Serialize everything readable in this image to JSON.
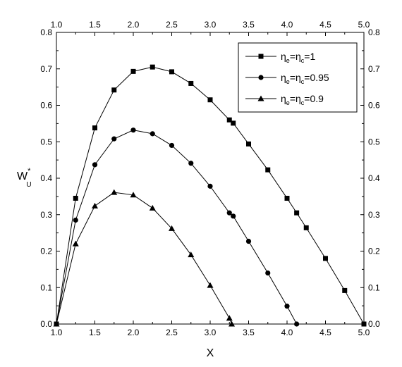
{
  "chart_data": {
    "type": "line",
    "xlabel": "X",
    "ylabel": {
      "main": "W",
      "sup": "*",
      "sub": "U"
    },
    "xlim": [
      1.0,
      5.0
    ],
    "ylim": [
      0.0,
      0.8
    ],
    "x_ticks": [
      "1.0",
      "1.5",
      "2.0",
      "2.5",
      "3.0",
      "3.5",
      "4.0",
      "4.5",
      "5.0"
    ],
    "y_ticks": [
      "0.0",
      "0.1",
      "0.2",
      "0.3",
      "0.4",
      "0.5",
      "0.6",
      "0.7",
      "0.8"
    ],
    "legend_position": "top-right",
    "grid": false,
    "series": [
      {
        "name": {
          "a": "η",
          "a_sub": "e",
          "b": "=η",
          "b_sub": "c",
          "c": "=1"
        },
        "marker": "square",
        "points": [
          [
            1.0,
            0.0
          ],
          [
            1.25,
            0.345
          ],
          [
            1.5,
            0.538
          ],
          [
            1.75,
            0.642
          ],
          [
            2.0,
            0.693
          ],
          [
            2.25,
            0.705
          ],
          [
            2.5,
            0.692
          ],
          [
            2.75,
            0.66
          ],
          [
            3.0,
            0.615
          ],
          [
            3.25,
            0.56
          ],
          [
            3.3,
            0.551
          ],
          [
            3.5,
            0.494
          ],
          [
            3.75,
            0.423
          ],
          [
            4.0,
            0.345
          ],
          [
            4.125,
            0.305
          ],
          [
            4.25,
            0.264
          ],
          [
            4.5,
            0.18
          ],
          [
            4.75,
            0.092
          ],
          [
            5.0,
            0.0
          ]
        ]
      },
      {
        "name": {
          "a": "η",
          "a_sub": "e",
          "b": "=η",
          "b_sub": "c",
          "c": "=0.95"
        },
        "marker": "circle",
        "points": [
          [
            1.0,
            0.0
          ],
          [
            1.25,
            0.285
          ],
          [
            1.5,
            0.437
          ],
          [
            1.75,
            0.508
          ],
          [
            2.0,
            0.532
          ],
          [
            2.25,
            0.522
          ],
          [
            2.5,
            0.49
          ],
          [
            2.75,
            0.441
          ],
          [
            3.0,
            0.378
          ],
          [
            3.25,
            0.305
          ],
          [
            3.3,
            0.296
          ],
          [
            3.5,
            0.227
          ],
          [
            3.75,
            0.14
          ],
          [
            4.0,
            0.049
          ],
          [
            4.125,
            0.0
          ]
        ]
      },
      {
        "name": {
          "a": "η",
          "a_sub": "e",
          "b": "=η",
          "b_sub": "c",
          "c": "=0.9"
        },
        "marker": "triangle",
        "points": [
          [
            1.0,
            0.0
          ],
          [
            1.25,
            0.22
          ],
          [
            1.5,
            0.324
          ],
          [
            1.75,
            0.361
          ],
          [
            2.0,
            0.354
          ],
          [
            2.25,
            0.318
          ],
          [
            2.5,
            0.262
          ],
          [
            2.75,
            0.19
          ],
          [
            3.0,
            0.106
          ],
          [
            3.25,
            0.016
          ],
          [
            3.28,
            0.0
          ]
        ]
      }
    ]
  }
}
